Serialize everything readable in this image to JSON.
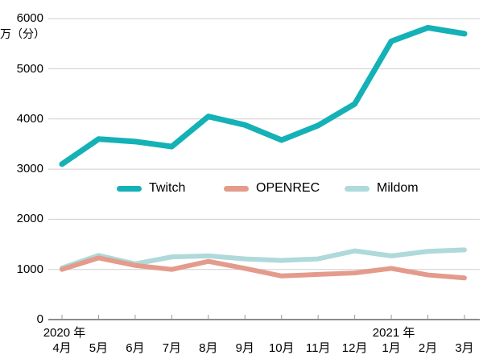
{
  "chart_data": {
    "type": "line",
    "title": "",
    "unit_label": "万（分）",
    "categories": [
      "4月",
      "5月",
      "6月",
      "7月",
      "8月",
      "9月",
      "10月",
      "11月",
      "12月",
      "1月",
      "2月",
      "3月"
    ],
    "year_labels": [
      {
        "label": "2020 年",
        "month_index": 0
      },
      {
        "label": "2021 年",
        "month_index": 9
      }
    ],
    "yticks": [
      0,
      1000,
      2000,
      3000,
      4000,
      5000,
      6000
    ],
    "ylim": [
      0,
      6000
    ],
    "grid": "horizontal",
    "legend_position": "inside-middle",
    "axis_color": "#8c8c8c",
    "gridline_color": "#cfcfcf",
    "series": [
      {
        "name": "Twitch",
        "color": "#14b1b6",
        "values": [
          3100,
          3600,
          3550,
          3450,
          4050,
          3880,
          3580,
          3870,
          4300,
          5550,
          5820,
          5700
        ]
      },
      {
        "name": "OPENREC",
        "color": "#e49b8c",
        "values": [
          1000,
          1230,
          1080,
          1000,
          1160,
          1020,
          870,
          900,
          930,
          1020,
          890,
          830
        ]
      },
      {
        "name": "Mildom",
        "color": "#afd9da",
        "values": [
          1030,
          1280,
          1110,
          1250,
          1270,
          1210,
          1180,
          1210,
          1370,
          1270,
          1360,
          1390
        ]
      }
    ]
  }
}
